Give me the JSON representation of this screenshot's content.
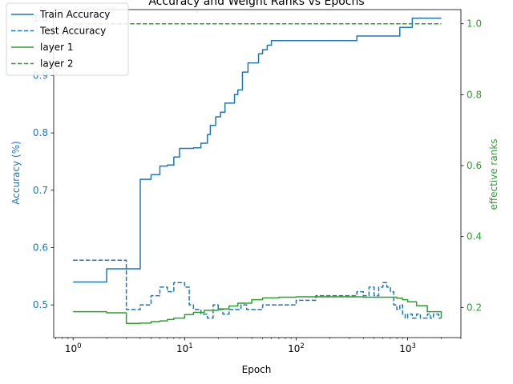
{
  "chart_data": {
    "type": "line",
    "title": "Accuracy and Weight Ranks vs Epochs",
    "xlabel": "Epoch",
    "ylabel_left": "Accuracy (%)",
    "ylabel_right": "effective ranks",
    "x_scale": "log",
    "xlim": [
      0.67,
      3000
    ],
    "ylim_left": [
      0.443,
      1.015
    ],
    "ylim_right": [
      0.115,
      1.04
    ],
    "x_tick_labels": [
      "10^0",
      "10^1",
      "10^2",
      "10^3"
    ],
    "left_tick_labels": [
      "0.5",
      "0.6",
      "0.7",
      "0.8",
      "0.9",
      "1.0"
    ],
    "right_tick_labels": [
      "0.2",
      "0.4",
      "0.6",
      "0.8",
      "1.0"
    ],
    "grid": false,
    "legend_position": "top-left",
    "colors": {
      "accuracy": "#1f77b4",
      "ranks": "#2ca02c"
    },
    "series": [
      {
        "name": "Train Accuracy",
        "axis": "left",
        "style": "solid",
        "color": "#1f77b4",
        "x": [
          1,
          2,
          3,
          4,
          5,
          6,
          7,
          8,
          9,
          10,
          12,
          14,
          16,
          17,
          19,
          21,
          23,
          26,
          28,
          30,
          33,
          37,
          42,
          46,
          50,
          55,
          60,
          100,
          200,
          330,
          350,
          500,
          800,
          850,
          1000,
          1100,
          1500,
          2000
        ],
        "y": [
          0.54,
          0.563,
          0.563,
          0.719,
          0.727,
          0.742,
          0.744,
          0.758,
          0.773,
          0.773,
          0.774,
          0.782,
          0.797,
          0.813,
          0.828,
          0.836,
          0.852,
          0.852,
          0.867,
          0.875,
          0.906,
          0.922,
          0.922,
          0.938,
          0.945,
          0.953,
          0.961,
          0.961,
          0.961,
          0.961,
          0.969,
          0.969,
          0.969,
          0.984,
          0.984,
          1.0,
          1.0,
          1.0
        ]
      },
      {
        "name": "Test Accuracy",
        "axis": "left",
        "style": "dashed",
        "color": "#1f77b4",
        "x": [
          1,
          2,
          3,
          4,
          5,
          6,
          7,
          8,
          9,
          10,
          11,
          12,
          14,
          16,
          18,
          20,
          22,
          25,
          28,
          32,
          36,
          40,
          45,
          50,
          60,
          80,
          100,
          150,
          200,
          300,
          350,
          400,
          450,
          500,
          550,
          600,
          650,
          700,
          750,
          800,
          850,
          900,
          950,
          1000,
          1100,
          1200,
          1300,
          1400,
          1500,
          1600,
          1700,
          1800,
          1900,
          2000
        ],
        "y": [
          0.578,
          0.578,
          0.492,
          0.5,
          0.516,
          0.531,
          0.523,
          0.539,
          0.539,
          0.531,
          0.5,
          0.492,
          0.484,
          0.477,
          0.5,
          0.492,
          0.484,
          0.492,
          0.492,
          0.5,
          0.492,
          0.492,
          0.492,
          0.5,
          0.5,
          0.5,
          0.508,
          0.516,
          0.516,
          0.516,
          0.523,
          0.516,
          0.531,
          0.516,
          0.531,
          0.539,
          0.531,
          0.523,
          0.5,
          0.492,
          0.5,
          0.484,
          0.477,
          0.484,
          0.477,
          0.484,
          0.477,
          0.477,
          0.484,
          0.477,
          0.484,
          0.484,
          0.477,
          0.477
        ]
      },
      {
        "name": "layer 1",
        "axis": "right",
        "style": "solid",
        "color": "#2ca02c",
        "x": [
          1,
          2,
          3,
          4,
          5,
          6,
          7,
          8,
          10,
          12,
          15,
          20,
          25,
          30,
          40,
          50,
          70,
          100,
          200,
          300,
          400,
          500,
          600,
          700,
          800,
          900,
          1000,
          1200,
          1500,
          2000
        ],
        "y": [
          0.188,
          0.185,
          0.155,
          0.156,
          0.16,
          0.162,
          0.166,
          0.17,
          0.18,
          0.186,
          0.192,
          0.196,
          0.204,
          0.212,
          0.222,
          0.227,
          0.229,
          0.23,
          0.23,
          0.23,
          0.229,
          0.229,
          0.229,
          0.229,
          0.226,
          0.222,
          0.216,
          0.205,
          0.188,
          0.17
        ]
      },
      {
        "name": "layer 2",
        "axis": "right",
        "style": "dashed",
        "color": "#2ca02c",
        "x": [
          1,
          2000
        ],
        "y": [
          1.0,
          1.0
        ]
      }
    ]
  }
}
